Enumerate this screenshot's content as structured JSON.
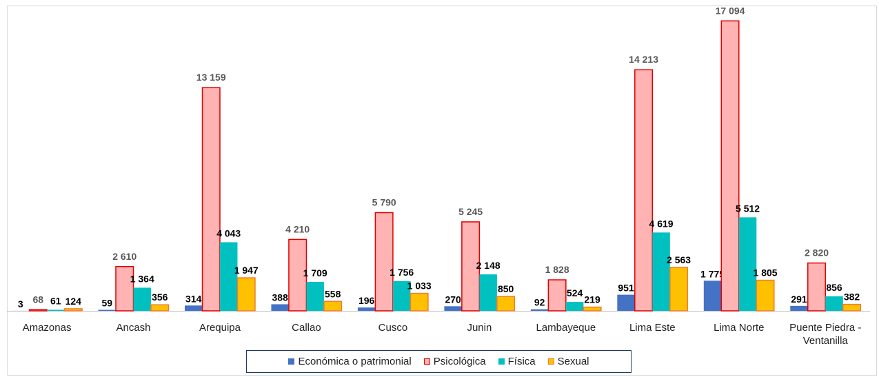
{
  "chart_data": {
    "type": "bar",
    "categories": [
      "Amazonas",
      "Ancash",
      "Arequipa",
      "Callao",
      "Cusco",
      "Junin",
      "Lambayeque",
      "Lima Este",
      "Lima Norte",
      "Puente Piedra - Ventanilla"
    ],
    "ylim": [
      0,
      18000
    ],
    "series": [
      {
        "name": "Económica o patrimonial",
        "color": "#4472c4",
        "values": [
          3,
          59,
          314,
          388,
          196,
          270,
          92,
          951,
          1775,
          291
        ],
        "value_labels": [
          "3",
          "59",
          "314",
          "388",
          "196",
          "270",
          "92",
          "951",
          "1 775",
          "291"
        ]
      },
      {
        "name": "Psicológica",
        "color": "#ffb3b3",
        "values": [
          68,
          2610,
          13159,
          4210,
          5790,
          5245,
          1828,
          14213,
          17094,
          2820
        ],
        "value_labels": [
          "68",
          "2 610",
          "13 159",
          "4 210",
          "5 790",
          "5 245",
          "1 828",
          "14 213",
          "17 094",
          "2 820"
        ]
      },
      {
        "name": "Física",
        "color": "#00c0c0",
        "values": [
          61,
          1364,
          4043,
          1709,
          1756,
          2148,
          524,
          4619,
          5512,
          856
        ],
        "value_labels": [
          "61",
          "1 364",
          "4 043",
          "1 709",
          "1 756",
          "2 148",
          "524",
          "4 619",
          "5 512",
          "856"
        ]
      },
      {
        "name": "Sexual",
        "color": "#ffc000",
        "values": [
          124,
          356,
          1947,
          558,
          1033,
          850,
          219,
          2563,
          1805,
          382
        ],
        "value_labels": [
          "124",
          "356",
          "1 947",
          "558",
          "1 033",
          "850",
          "219",
          "2 563",
          "1 805",
          "382"
        ]
      }
    ],
    "legend": "bottom"
  }
}
